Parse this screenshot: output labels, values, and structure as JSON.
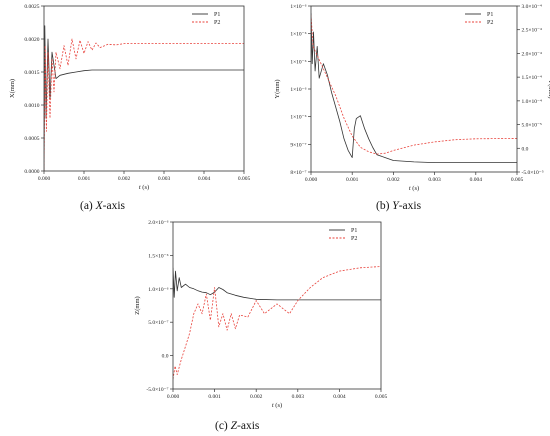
{
  "charts": [
    {
      "id": "a",
      "caption": {
        "prefix": "(a) ",
        "italic": "X",
        "suffix": "-axis"
      },
      "xlabel": {
        "italic": "t",
        "rest": " (s)"
      },
      "ylabel": "X(mm)",
      "ylabel_right": "",
      "xticks": [
        "0.000",
        "0.001",
        "0.002",
        "0.003",
        "0.004",
        "0.005"
      ],
      "yticks": [
        "0.0000",
        "0.0005",
        "0.0010",
        "0.0015",
        "0.0020",
        "0.0025"
      ],
      "yticks_right": [],
      "legend": [
        "P1",
        "P2"
      ]
    },
    {
      "id": "b",
      "caption": {
        "prefix": "(b) ",
        "italic": "Y",
        "suffix": "-axis"
      },
      "xlabel": {
        "italic": "t",
        "rest": " (s)"
      },
      "ylabel": "Y(mm)",
      "ylabel_right": "Y(mm)",
      "xticks": [
        "0.000",
        "0.001",
        "0.002",
        "0.003",
        "0.004",
        "0.005"
      ],
      "yticks": [
        "8×10⁻⁷",
        "9×10⁻⁷",
        "1×10⁻⁶",
        "1×10⁻⁶",
        "1×10⁻⁶",
        "1×10⁻⁶",
        "1×10⁻⁶"
      ],
      "yticks_right": [
        "-5.0×10⁻⁵",
        "0.0",
        "5.0×10⁻⁵",
        "1.0×10⁻⁴",
        "1.5×10⁻⁴",
        "2.0×10⁻⁴",
        "2.5×10⁻⁴",
        "3.0×10⁻⁴"
      ],
      "legend": [
        "P1",
        "P2"
      ]
    },
    {
      "id": "c",
      "caption": {
        "prefix": "(c) ",
        "italic": "Z",
        "suffix": "-axis"
      },
      "xlabel": {
        "italic": "t",
        "rest": " (s)"
      },
      "ylabel": "Z(mm)",
      "ylabel_right": "",
      "xticks": [
        "0.000",
        "0.001",
        "0.002",
        "0.003",
        "0.004",
        "0.005"
      ],
      "yticks": [
        "-5.0×10⁻⁷",
        "0.0",
        "5.0×10⁻⁷",
        "1.0×10⁻⁶",
        "1.5×10⁻⁶",
        "2.0×10⁻⁶"
      ],
      "yticks_right": [],
      "legend": [
        "P1",
        "P2"
      ]
    }
  ],
  "chart_data": [
    {
      "type": "line",
      "xlim": [
        0,
        0.005
      ],
      "ylim": [
        0,
        0.0025
      ],
      "grid": false,
      "legend_placement": "top-right",
      "series": [
        {
          "name": "P1",
          "color": "#333333",
          "style": "solid",
          "x": [
            0,
            2e-05,
            5e-05,
            0.0001,
            0.00015,
            0.0002,
            0.0003,
            0.0004,
            0.0006,
            0.0008,
            0.001,
            0.0012,
            0.0015,
            0.002,
            0.003,
            0.004,
            0.005
          ],
          "y": [
            0.0,
            0.0022,
            0.0008,
            0.002,
            0.0011,
            0.0018,
            0.0014,
            0.00145,
            0.00148,
            0.0015,
            0.00152,
            0.00153,
            0.00153,
            0.00153,
            0.00153,
            0.00153,
            0.00153
          ]
        },
        {
          "name": "P2",
          "color": "#e8413a",
          "style": "dashed",
          "x": [
            0,
            3e-05,
            6e-05,
            0.0001,
            0.00015,
            0.0002,
            0.00025,
            0.0003,
            0.0004,
            0.0005,
            0.0006,
            0.0007,
            0.0008,
            0.0009,
            0.001,
            0.0011,
            0.0012,
            0.0013,
            0.0014,
            0.0016,
            0.0018,
            0.002,
            0.0025,
            0.003,
            0.004,
            0.005
          ],
          "y": [
            0.0,
            0.0019,
            0.0006,
            0.0018,
            0.0008,
            0.0017,
            0.0012,
            0.0018,
            0.00155,
            0.0019,
            0.0016,
            0.002,
            0.0017,
            0.00198,
            0.00178,
            0.00196,
            0.00183,
            0.00194,
            0.00187,
            0.00192,
            0.00191,
            0.00193,
            0.00193,
            0.00193,
            0.00193,
            0.00193
          ]
        }
      ]
    },
    {
      "type": "line",
      "xlim": [
        0,
        0.005
      ],
      "ylim": [
        7.5e-07,
        1.9e-06
      ],
      "y2lim": [
        -7e-05,
        0.0003
      ],
      "grid": false,
      "legend_placement": "top-right",
      "series": [
        {
          "name": "P1",
          "color": "#333333",
          "style": "solid",
          "axis": "left",
          "x": [
            0,
            3e-05,
            6e-05,
            0.0001,
            0.00015,
            0.0002,
            0.0003,
            0.0004,
            0.0005,
            0.0006,
            0.0007,
            0.0008,
            0.0009,
            0.001,
            0.00105,
            0.0011,
            0.0012,
            0.0013,
            0.0014,
            0.0015,
            0.0016,
            0.0018,
            0.002,
            0.0025,
            0.003,
            0.004,
            0.005
          ],
          "y": [
            1.85e-06,
            1.5e-06,
            1.72e-06,
            1.45e-06,
            1.62e-06,
            1.4e-06,
            1.5e-06,
            1.42e-06,
            1.3e-06,
            1.2e-06,
            1.1e-06,
            9.8e-07,
            9e-07,
            8.5e-07,
            1.05e-06,
            1.12e-06,
            1.14e-06,
            1.05e-06,
            9.8e-07,
            9.2e-07,
            8.7e-07,
            8.5e-07,
            8.3e-07,
            8.2e-07,
            8.15e-07,
            8.15e-07,
            8.15e-07
          ]
        },
        {
          "name": "P2",
          "color": "#e8413a",
          "style": "dashed",
          "axis": "right",
          "x": [
            0,
            5e-05,
            0.0001,
            0.0002,
            0.0003,
            0.0004,
            0.0006,
            0.0008,
            0.001,
            0.0012,
            0.0014,
            0.0016,
            0.0018,
            0.002,
            0.0025,
            0.003,
            0.0035,
            0.004,
            0.005
          ],
          "y": [
            0.00028,
            0.00021,
            0.0002,
            0.00018,
            0.00016,
            0.00014,
            0.0001,
            5e-05,
            1e-05,
            -1.5e-05,
            -2.5e-05,
            -3e-05,
            -2.8e-05,
            -2.2e-05,
            -1e-05,
            -3e-06,
            2e-06,
            4e-06,
            5e-06
          ]
        }
      ]
    },
    {
      "type": "line",
      "xlim": [
        0,
        0.005
      ],
      "ylim": [
        -5.5e-07,
        2e-06
      ],
      "grid": false,
      "legend_placement": "top-right",
      "series": [
        {
          "name": "P1",
          "color": "#333333",
          "style": "solid",
          "x": [
            0,
            3e-05,
            6e-05,
            0.0001,
            0.00015,
            0.0002,
            0.0003,
            0.0004,
            0.0005,
            0.0006,
            0.0007,
            0.0008,
            0.0009,
            0.001,
            0.0011,
            0.0012,
            0.0013,
            0.0015,
            0.0017,
            0.0019,
            0.002,
            0.0025,
            0.003,
            0.004,
            0.005
          ],
          "y": [
            1.3e-06,
            8.5e-07,
            1.25e-06,
            9.5e-07,
            1.15e-06,
            1e-06,
            1.05e-06,
            1e-06,
            9.8e-07,
            9.5e-07,
            9.3e-07,
            9.2e-07,
            8.9e-07,
            9.3e-07,
            1e-06,
            9.7e-07,
            9.2e-07,
            8.8e-07,
            8.5e-07,
            8.3e-07,
            8.2e-07,
            8.1e-07,
            8.1e-07,
            8.1e-07,
            8.1e-07
          ]
        },
        {
          "name": "P2",
          "color": "#e8413a",
          "style": "dashed",
          "x": [
            0,
            5e-05,
            0.0001,
            0.0002,
            0.0003,
            0.0004,
            0.0005,
            0.0006,
            0.0007,
            0.0008,
            0.0009,
            0.001,
            0.0011,
            0.0012,
            0.0013,
            0.0014,
            0.0015,
            0.0016,
            0.0018,
            0.002,
            0.0022,
            0.0025,
            0.0028,
            0.003,
            0.0033,
            0.0036,
            0.004,
            0.0045,
            0.005
          ],
          "y": [
            -4e-07,
            -2e-07,
            -3.3e-07,
            -1e-07,
            1e-07,
            3e-07,
            6e-07,
            7.5e-07,
            6e-07,
            9e-07,
            5e-07,
            1e-06,
            4e-07,
            6e-07,
            3.5e-07,
            6e-07,
            3.7e-07,
            5.8e-07,
            5.5e-07,
            8e-07,
            6e-07,
            7.5e-07,
            6e-07,
            8e-07,
            1e-06,
            1.15e-06,
            1.25e-06,
            1.3e-06,
            1.32e-06
          ]
        }
      ]
    }
  ]
}
